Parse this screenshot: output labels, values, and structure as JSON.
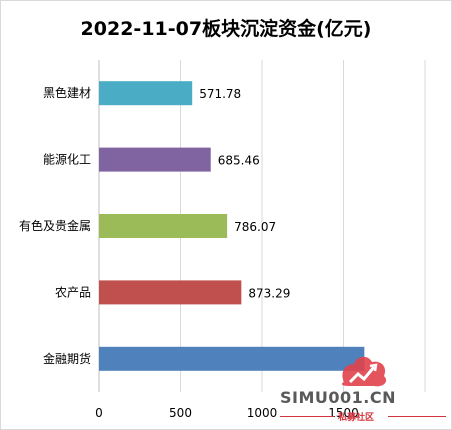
{
  "chart_data": {
    "type": "bar",
    "orientation": "horizontal",
    "title": "2022-11-07板块沉淀资金(亿元)",
    "categories": [
      "黑色建材",
      "能源化工",
      "有色及贵金属",
      "农产品",
      "金融期货"
    ],
    "values": [
      571.78,
      685.46,
      786.07,
      873.29,
      1628
    ],
    "data_labels": [
      "571.78",
      "685.46",
      "786.07",
      "873.29",
      ""
    ],
    "colors": [
      "#4bacc6",
      "#8064a2",
      "#9bbb59",
      "#c0504d",
      "#4f81bd"
    ],
    "xlim": [
      0,
      2000
    ],
    "xticks": [
      "0",
      "500",
      "1000",
      "1500"
    ],
    "grid": true,
    "legend": "none"
  },
  "watermark": {
    "text": "SIMU001.CN",
    "subtext": "私募社区",
    "logo": "simu-logo-icon",
    "logo_color": "#e0414b"
  }
}
